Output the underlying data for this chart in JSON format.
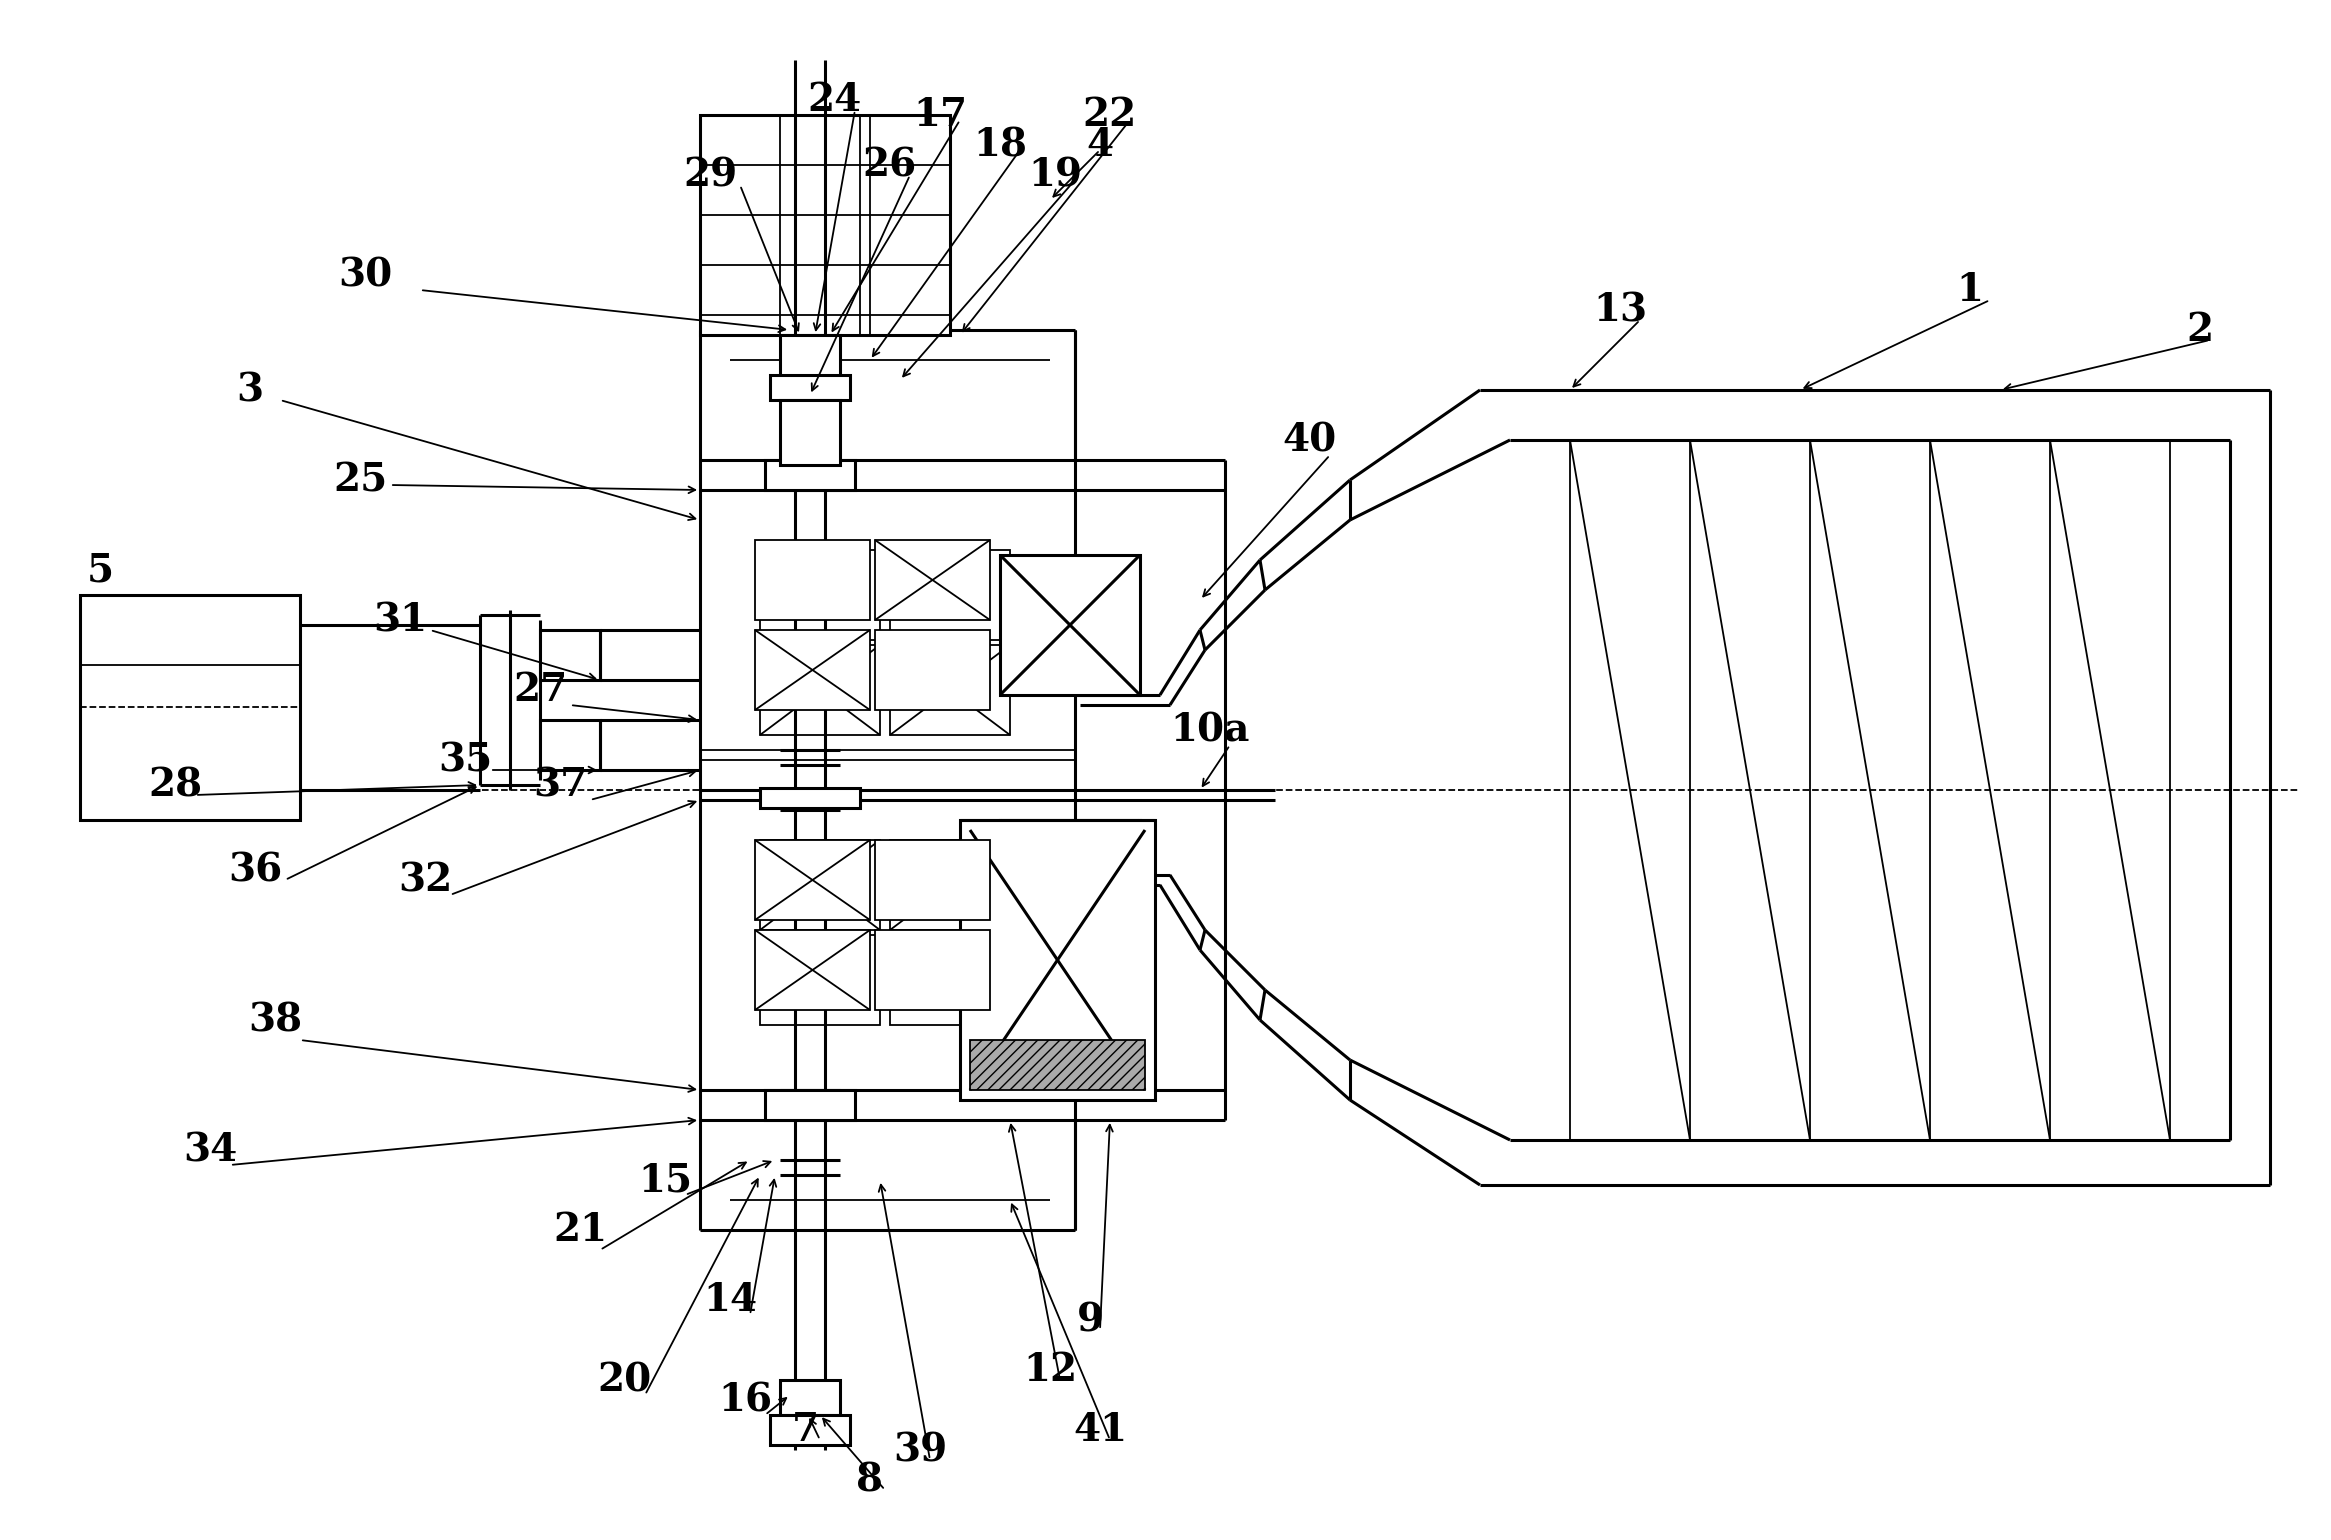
{
  "bg_color": "#ffffff",
  "line_color": "#000000",
  "lw": 2.2,
  "tlw": 1.3,
  "fig_width": 23.31,
  "fig_height": 15.4,
  "dpi": 100
}
